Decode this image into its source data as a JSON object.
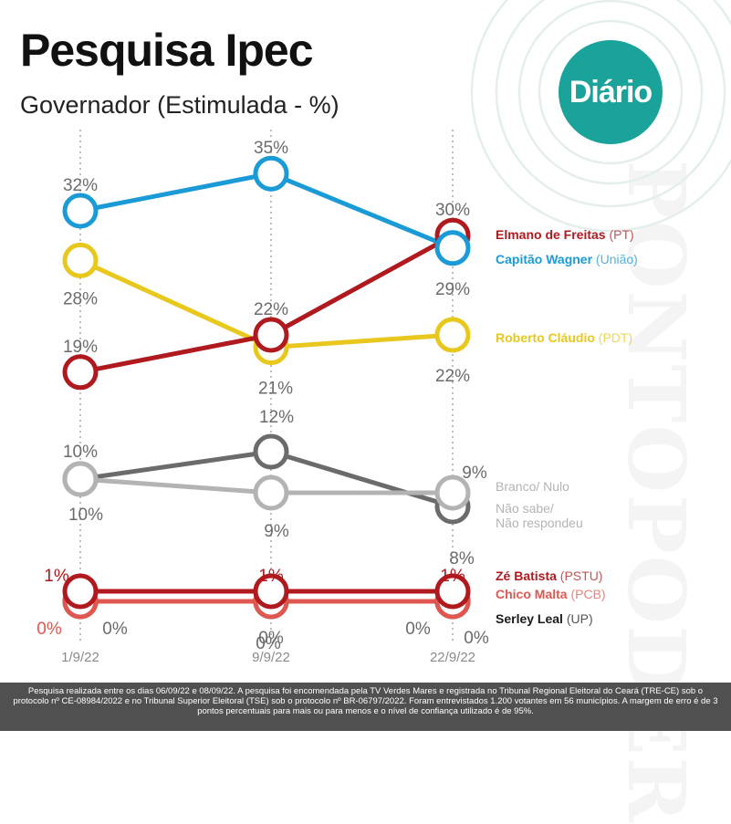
{
  "brand": {
    "logo_text": "Diário",
    "watermark_text": "PONTOPODER",
    "teal": "#1aa39a"
  },
  "header": {
    "title": "Pesquisa Ipec",
    "subtitle": "Governador (Estimulada - %)"
  },
  "footer": {
    "note": "Pesquisa realizada entre os dias 06/09/22 e 08/09/22. A pesquisa foi encomendada pela TV Verdes Mares e registrada no Tribunal Regional Eleitoral do Ceará (TRE-CE) sob o protocolo nº CE-08984/2022 e no Tribunal Superior Eleitoral (TSE) sob o protocolo nº BR-06797/2022. Foram entrevistados 1.200 votantes em 56 municípios. A margem de erro é de 3 pontos percentuais para mais ou para menos e o nível de confiança utilizado é de 95%."
  },
  "chart_data": {
    "type": "line",
    "title": "Pesquisa Ipec",
    "subtitle": "Governador (Estimulada - %)",
    "categories": [
      "1/9/22",
      "9/9/22",
      "22/9/22"
    ],
    "series": [
      {
        "name": "Elmano de Freitas",
        "party": "(PT)",
        "values": [
          19,
          22,
          30
        ],
        "labels": [
          "19%",
          "22%",
          "30%"
        ],
        "color": "#b0191e"
      },
      {
        "name": "Capitão Wagner",
        "party": "(União)",
        "values": [
          32,
          35,
          29
        ],
        "labels": [
          "32%",
          "35%",
          "29%"
        ],
        "color": "#1a9ad6"
      },
      {
        "name": "Roberto Cláudio",
        "party": "(PDT)",
        "values": [
          28,
          21,
          22
        ],
        "labels": [
          "28%",
          "21%",
          "22%"
        ],
        "color": "#e8c81d"
      },
      {
        "name": "Branco/ Nulo",
        "party": "",
        "values": [
          10,
          9,
          9
        ],
        "labels": [
          "10%",
          "9%",
          "9%"
        ],
        "color": "#b3b3b3"
      },
      {
        "name": "Não sabe/ Não respondeu",
        "party": "",
        "values": [
          10,
          12,
          8
        ],
        "labels": [
          "10%",
          "12%",
          "8%"
        ],
        "color": "#6b6b6b"
      },
      {
        "name": "Zé Batista",
        "party": "(PSTU)",
        "values": [
          1,
          1,
          1
        ],
        "labels": [
          "1%",
          "1%",
          "1%"
        ],
        "color": "#b0191e"
      },
      {
        "name": "Chico Malta",
        "party": "(PCB)",
        "values": [
          0,
          0,
          0
        ],
        "labels": [
          "0%",
          "0%",
          "0%"
        ],
        "color": "#e0574f"
      },
      {
        "name": "Serley Leal",
        "party": "(UP)",
        "values": [
          0,
          0,
          0
        ],
        "labels": [
          "0%",
          "0%",
          "0%"
        ],
        "color": "#1a1a1a"
      }
    ],
    "legend_lines": [
      {
        "name": "Elmano de Freitas",
        "party": "(PT)"
      },
      {
        "name": "Capitão Wagner",
        "party": "(União)"
      },
      {
        "name": "Roberto Cláudio",
        "party": "(PDT)"
      },
      {
        "name": "Branco/ Nulo",
        "party": ""
      },
      {
        "name": "Não sabe/",
        "party": ""
      },
      {
        "name": "Não respondeu",
        "party": ""
      },
      {
        "name": "Zé Batista",
        "party": "(PSTU)"
      },
      {
        "name": "Chico Malta",
        "party": "(PCB)"
      },
      {
        "name": "Serley Leal",
        "party": "(UP)"
      }
    ],
    "legend_placement": "right",
    "grid": false
  }
}
